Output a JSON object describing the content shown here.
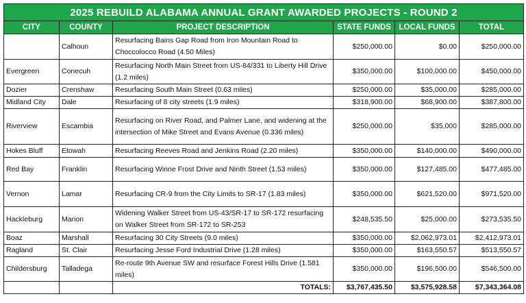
{
  "title": "2025 REBUILD ALABAMA ANNUAL GRANT AWARDED PROJECTS - ROUND 2",
  "headers": [
    "CITY",
    "COUNTY",
    "PROJECT DESCRIPTION",
    "STATE FUNDS",
    "LOCAL FUNDS",
    "TOTAL"
  ],
  "rows": [
    {
      "city": "",
      "county": "Calhoun",
      "desc": "Resurfacing Bains Gap Road from Iron Mountain Road to Choccolocco Road (4.50 Miles)",
      "state": "$250,000.00",
      "local": "$0.00",
      "total": "$250,000.00"
    },
    {
      "city": "Evergreen",
      "county": "Conecuh",
      "desc": "Resurfacing North Main Street from US-84/331 to Liberty Hill Drive (1.2 miles)",
      "state": "$350,000.00",
      "local": "$100,000.00",
      "total": "$450,000.00"
    },
    {
      "city": "Dozier",
      "county": "Crenshaw",
      "desc": "Resurfacing South Main Street (0.63 miles)",
      "state": "$250,000.00",
      "local": "$35,000.00",
      "total": "$285,000.00"
    },
    {
      "city": "Midland City",
      "county": "Dale",
      "desc": "Resurfacing of 8 city streets (1.9 miles)",
      "state": "$318,900.00",
      "local": "$68,900.00",
      "total": "$387,800.00"
    },
    {
      "city": "Riverview",
      "county": "Escambia",
      "desc": "Resurfacing on River Road, and Palmer Lane, and widening at the intersection of Mike Street and Evans Avenue (0.336 miles)",
      "state": "$250,000.00",
      "local": "$35,000",
      "total": "$285,000.00"
    },
    {
      "city": "Hokes Bluff",
      "county": "Etowah",
      "desc": "Resurfacing Reeves Road and Jenkins Road (2.20 miles)",
      "state": "$350,000.00",
      "local": "$140,000.00",
      "total": "$490,000.00"
    },
    {
      "city": "Red Bay",
      "county": "Franklin",
      "desc": "Resurfacing Winne Frost Drive and Ninth Street (1.53 miles)",
      "state": "$350,000.00",
      "local": "$127,485.00",
      "total": "$477,485.00"
    },
    {
      "city": "Vernon",
      "county": "Lamar",
      "desc": "Resurfacing CR-9 from the City Limits to SR-17 (1.83 miles)",
      "state": "$350,000.00",
      "local": "$621,520.00",
      "total": "$971,520.00"
    },
    {
      "city": "Hackleburg",
      "county": "Marion",
      "desc": "Widening Walker Street from US-43/SR-17 to SR-172 resurfacing on Walker Street from SR-172 to SR-253",
      "state": "$248,535.50",
      "local": "$25,000.00",
      "total": "$273,535.50"
    },
    {
      "city": "Boaz",
      "county": "Marshall",
      "desc": "Resurfacing 30 City Streets (9.0 miles)",
      "state": "$350,000.00",
      "local": "$2,062,973.01",
      "total": "$2,412,973.01"
    },
    {
      "city": "Ragland",
      "county": "St. Clair",
      "desc": "Resurfacing Jesse Ford Industrial Drive (1.28 miles)",
      "state": "$350,000.00",
      "local": "$163,550.57",
      "total": "$513,550.57"
    },
    {
      "city": "Childersburg",
      "county": "Talladega",
      "desc": "Re-route 9th Avenue SW and resurface Forest Hills Drive (1.581 miles)",
      "state": "$350,000.00",
      "local": "$196,500.00",
      "total": "$546,500.00"
    }
  ],
  "totals": {
    "label": "TOTALS:",
    "state": "$3,767,435.50",
    "local": "$3,575,928.58",
    "total": "$7,343,364.08"
  }
}
